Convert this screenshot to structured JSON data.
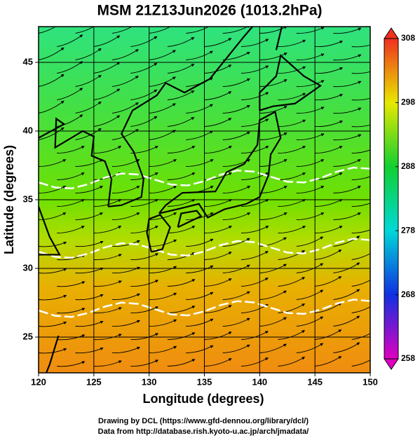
{
  "chart_data": {
    "type": "map",
    "title": "MSM 21Z13Jun2026 (1013.2hPa)",
    "xlabel": "Longitude (degrees)",
    "ylabel": "Latitude  (degrees)",
    "xlim": [
      120,
      150
    ],
    "xticks": [
      120,
      125,
      130,
      135,
      140,
      145,
      150
    ],
    "ylim": [
      22.4,
      47.6
    ],
    "yticks": [
      25,
      30,
      35,
      40,
      45
    ],
    "grid": true,
    "clim": [
      258,
      308
    ],
    "cticks": [
      258,
      268,
      278,
      288,
      298,
      308
    ],
    "footer": [
      "Drawing by DCL (https://www.gfd-dennou.org/library/dcl/)",
      "Data from http://database.rish.kyoto-u.ac.jp/arch/jmadata/"
    ]
  }
}
